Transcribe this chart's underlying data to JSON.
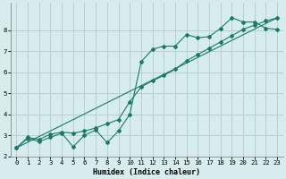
{
  "title": "",
  "xlabel": "Humidex (Indice chaleur)",
  "ylabel": "",
  "bg_color": "#d7eded",
  "grid_color": "#b8d0d0",
  "line_color": "#1a7a6a",
  "xlim": [
    -0.5,
    23.5
  ],
  "ylim": [
    2.0,
    9.3
  ],
  "yticks": [
    2,
    3,
    4,
    5,
    6,
    7,
    8
  ],
  "xticks": [
    0,
    1,
    2,
    3,
    4,
    5,
    6,
    7,
    8,
    9,
    10,
    11,
    12,
    13,
    14,
    15,
    16,
    17,
    18,
    19,
    20,
    21,
    22,
    23
  ],
  "line1_x": [
    0,
    1,
    2,
    3,
    4,
    5,
    6,
    7,
    8,
    9,
    10,
    11,
    12,
    13,
    14,
    15,
    16,
    17,
    18,
    19,
    20,
    21,
    22,
    23
  ],
  "line1_y": [
    2.4,
    2.85,
    2.7,
    2.9,
    3.1,
    2.45,
    3.0,
    3.25,
    2.65,
    3.2,
    4.0,
    6.5,
    7.1,
    7.25,
    7.25,
    7.8,
    7.65,
    7.7,
    8.1,
    8.6,
    8.4,
    8.4,
    8.1,
    8.05
  ],
  "line2_x": [
    0,
    1,
    2,
    3,
    4,
    5,
    6,
    7,
    8,
    9,
    10,
    11,
    12,
    13,
    14,
    15,
    16,
    17,
    18,
    19,
    20,
    21,
    22,
    23
  ],
  "line2_y": [
    2.4,
    2.9,
    2.8,
    3.05,
    3.15,
    3.1,
    3.2,
    3.35,
    3.55,
    3.75,
    4.6,
    5.3,
    5.6,
    5.85,
    6.15,
    6.55,
    6.85,
    7.15,
    7.45,
    7.75,
    8.05,
    8.25,
    8.45,
    8.6
  ],
  "line3_x": [
    0,
    23
  ],
  "line3_y": [
    2.4,
    8.6
  ]
}
